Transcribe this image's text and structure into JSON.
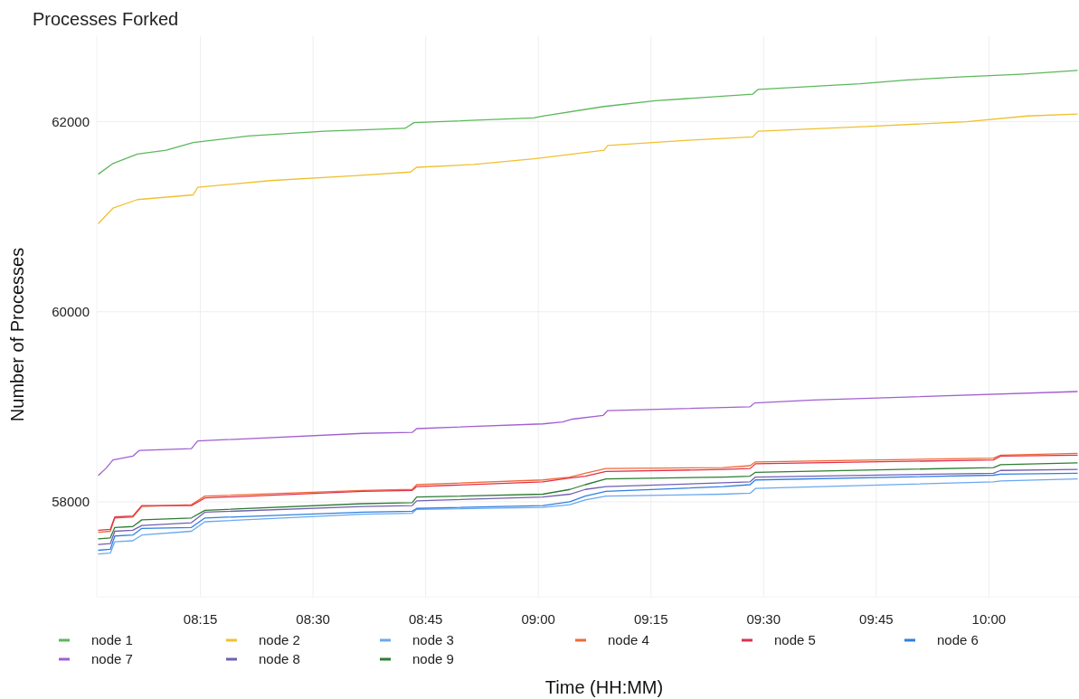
{
  "chart_data": {
    "type": "line",
    "title": "Processes Forked",
    "xlabel": "Time (HH:MM)",
    "ylabel": "Number of Processes",
    "x": [
      8.024,
      8.05,
      8.06,
      8.1,
      8.12,
      8.23,
      8.26,
      8.61,
      8.72,
      8.73,
      9.01,
      9.07,
      9.104,
      9.15,
      9.41,
      9.47,
      9.482,
      10.01,
      10.026,
      10.196
    ],
    "xlim": [
      8.02,
      10.2
    ],
    "xticks": [
      {
        "value": 8.25,
        "label": "08:15"
      },
      {
        "value": 8.5,
        "label": "08:30"
      },
      {
        "value": 8.75,
        "label": "08:45"
      },
      {
        "value": 9,
        "label": "09:00"
      },
      {
        "value": 9.25,
        "label": "09:15"
      },
      {
        "value": 9.5,
        "label": "09:30"
      },
      {
        "value": 9.75,
        "label": "09:45"
      },
      {
        "value": 10,
        "label": "10:00"
      }
    ],
    "ylim": [
      57000,
      62900
    ],
    "yticks": [
      58000,
      60000,
      62000
    ],
    "grid": true,
    "legend": "bottom",
    "line_style": "solid",
    "series": [
      {
        "name": "node 1",
        "color": "#5cb85c",
        "x": [
          8.024,
          8.056,
          8.11,
          8.174,
          8.234,
          8.356,
          8.524,
          8.704,
          8.724,
          8.99,
          9.01,
          9.146,
          9.26,
          9.476,
          9.488,
          9.714,
          9.82,
          9.934,
          10.07,
          10.196
        ],
        "values": [
          61450,
          61560,
          61660,
          61700,
          61780,
          61850,
          61900,
          61930,
          61990,
          62040,
          62060,
          62160,
          62220,
          62290,
          62340,
          62400,
          62440,
          62470,
          62500,
          62540
        ]
      },
      {
        "name": "node 2",
        "color": "#f0c030",
        "x": [
          8.024,
          8.056,
          8.11,
          8.234,
          8.244,
          8.404,
          8.59,
          8.716,
          8.73,
          8.856,
          8.99,
          9.146,
          9.154,
          9.35,
          9.476,
          9.488,
          9.73,
          9.95,
          10.086,
          10.196
        ],
        "values": [
          60930,
          61090,
          61180,
          61230,
          61310,
          61380,
          61430,
          61470,
          61520,
          61550,
          61610,
          61700,
          61750,
          61810,
          61840,
          61900,
          61950,
          62000,
          62060,
          62080
        ]
      },
      {
        "name": "node 3",
        "color": "#6aa8f0",
        "values": [
          57450,
          57460,
          57580,
          57590,
          57650,
          57690,
          57790,
          57870,
          57880,
          57920,
          57940,
          57970,
          58020,
          58060,
          58080,
          58090,
          58140,
          58210,
          58220,
          58240
        ]
      },
      {
        "name": "node 4",
        "color": "#f06a35",
        "values": [
          57680,
          57690,
          57830,
          57840,
          57950,
          57970,
          58060,
          58120,
          58130,
          58180,
          58230,
          58260,
          58300,
          58350,
          58360,
          58380,
          58420,
          58460,
          58490,
          58510
        ]
      },
      {
        "name": "node 5",
        "color": "#e0304a",
        "values": [
          57700,
          57710,
          57840,
          57850,
          57960,
          57960,
          58040,
          58110,
          58120,
          58160,
          58210,
          58250,
          58270,
          58320,
          58340,
          58350,
          58400,
          58440,
          58480,
          58490
        ]
      },
      {
        "name": "node 6",
        "color": "#2f7fe0",
        "values": [
          57490,
          57500,
          57640,
          57650,
          57720,
          57730,
          57830,
          57890,
          57900,
          57930,
          57960,
          58000,
          58060,
          58110,
          58160,
          58180,
          58230,
          58280,
          58290,
          58300
        ]
      },
      {
        "name": "node 7",
        "color": "#a25fd0",
        "x": [
          8.024,
          8.04,
          8.056,
          8.1,
          8.114,
          8.23,
          8.244,
          8.61,
          8.72,
          8.73,
          9.01,
          9.054,
          9.076,
          9.144,
          9.154,
          9.47,
          9.48,
          9.61,
          10.196
        ],
        "values": [
          58280,
          58350,
          58440,
          58480,
          58540,
          58560,
          58640,
          58720,
          58730,
          58770,
          58820,
          58840,
          58870,
          58910,
          58960,
          59000,
          59040,
          59070,
          59160
        ]
      },
      {
        "name": "node 8",
        "color": "#7060b0",
        "values": [
          57550,
          57560,
          57690,
          57700,
          57750,
          57780,
          57890,
          57950,
          57960,
          58010,
          58050,
          58080,
          58130,
          58160,
          58200,
          58210,
          58260,
          58300,
          58330,
          58340
        ]
      },
      {
        "name": "node 9",
        "color": "#2e7d32",
        "values": [
          57610,
          57620,
          57730,
          57740,
          57810,
          57830,
          57910,
          57980,
          57990,
          58050,
          58080,
          58130,
          58180,
          58240,
          58260,
          58270,
          58310,
          58360,
          58390,
          58410
        ]
      }
    ]
  }
}
